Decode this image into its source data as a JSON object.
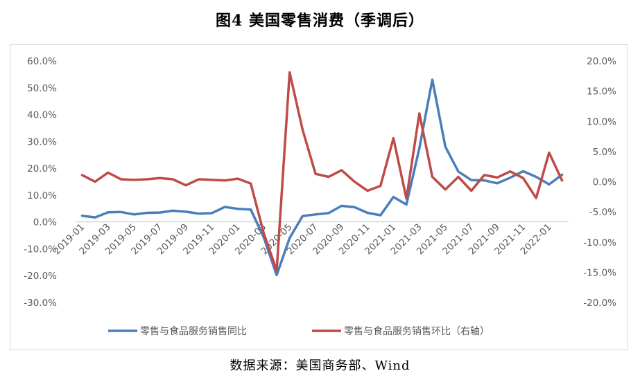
{
  "figure": {
    "title": "图4 美国零售消费（季调后）",
    "source": "数据来源：美国商务部、Wind"
  },
  "colors": {
    "series1": "#4a7ebb",
    "series2": "#be4b48",
    "axis": "#bfbfbf",
    "text": "#595959"
  },
  "chart_data": {
    "type": "line",
    "title": "",
    "xlabel": "",
    "ylabel": "",
    "grid": false,
    "legend_position": "bottom",
    "x": [
      "2019-01",
      "2019-02",
      "2019-03",
      "2019-04",
      "2019-05",
      "2019-06",
      "2019-07",
      "2019-08",
      "2019-09",
      "2019-10",
      "2019-11",
      "2019-12",
      "2020-01",
      "2020-02",
      "2020-03",
      "2020-04",
      "2020-05",
      "2020-06",
      "2020-07",
      "2020-08",
      "2020-09",
      "2020-10",
      "2020-11",
      "2020-12",
      "2021-01",
      "2021-02",
      "2021-03",
      "2021-04",
      "2021-05",
      "2021-06",
      "2021-07",
      "2021-08",
      "2021-09",
      "2021-10",
      "2021-11",
      "2021-12",
      "2022-01",
      "2022-02"
    ],
    "x_tick_labels": [
      "2019-01",
      "2019-03",
      "2019-05",
      "2019-07",
      "2019-09",
      "2019-11",
      "2020-01",
      "2020-03",
      "2020-05",
      "2020-07",
      "2020-09",
      "2020-11",
      "2021-01",
      "2021-03",
      "2021-05",
      "2021-07",
      "2021-09",
      "2021-11",
      "2022-01"
    ],
    "y_left": {
      "min": -30,
      "max": 60,
      "step": 10,
      "tick_labels": [
        "60.0%",
        "50.0%",
        "40.0%",
        "30.0%",
        "20.0%",
        "10.0%",
        "0.0%",
        "-10.0%",
        "-20.0%",
        "-30.0%"
      ]
    },
    "y_right": {
      "min": -20,
      "max": 20,
      "step": 5,
      "tick_labels": [
        "20.0%",
        "15.0%",
        "10.0%",
        "5.0%",
        "0.0%",
        "-5.0%",
        "-10.0%",
        "-15.0%",
        "-20.0%"
      ]
    },
    "series": [
      {
        "name": "零售与食品服务销售同比",
        "axis": "left",
        "values": [
          2.3,
          1.7,
          3.6,
          3.7,
          2.8,
          3.4,
          3.5,
          4.2,
          3.8,
          3.1,
          3.3,
          5.6,
          4.9,
          4.6,
          -5.7,
          -19.8,
          -6.0,
          2.2,
          2.8,
          3.3,
          6.0,
          5.5,
          3.4,
          2.5,
          9.3,
          6.5,
          27.5,
          53.0,
          28.0,
          18.8,
          15.6,
          15.5,
          14.4,
          16.5,
          18.9,
          16.8,
          14.0,
          17.6
        ]
      },
      {
        "name": "零售与食品服务销售环比（右轴）",
        "axis": "right",
        "values": [
          1.1,
          0.0,
          1.5,
          0.4,
          0.3,
          0.4,
          0.6,
          0.4,
          -0.6,
          0.4,
          0.3,
          0.2,
          0.5,
          -0.3,
          -8.5,
          -14.7,
          18.1,
          8.6,
          1.3,
          0.8,
          1.9,
          0.0,
          -1.5,
          -0.7,
          7.2,
          -2.8,
          11.3,
          0.8,
          -1.3,
          0.8,
          -1.5,
          1.1,
          0.7,
          1.7,
          0.6,
          -2.7,
          4.8,
          0.2
        ]
      }
    ]
  }
}
